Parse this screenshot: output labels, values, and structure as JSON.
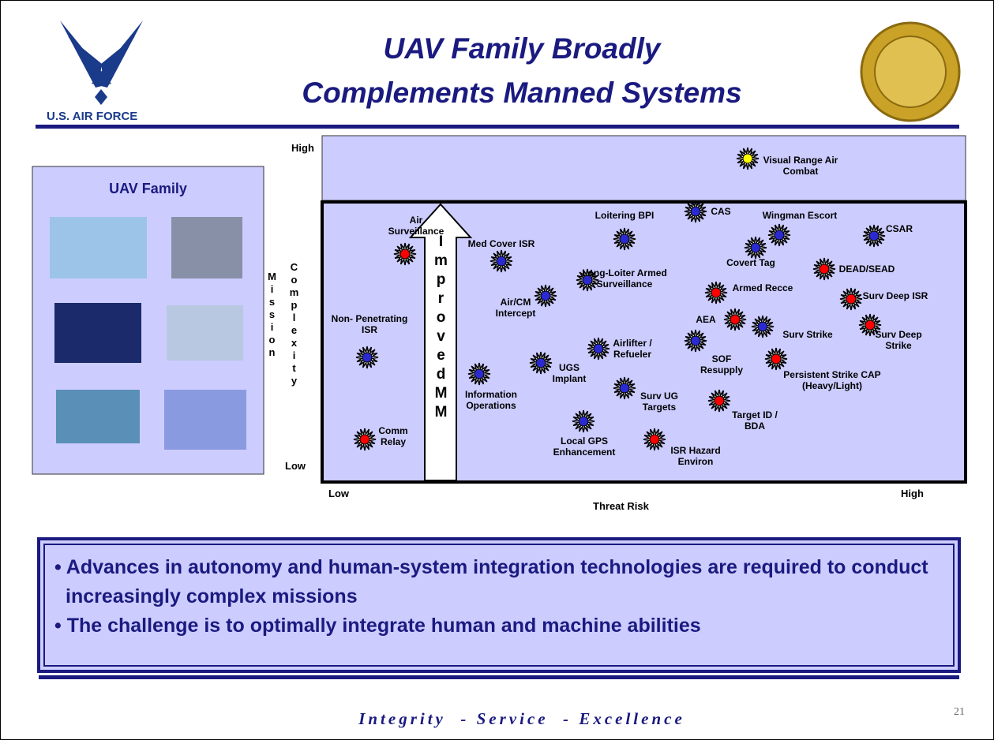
{
  "header": {
    "logo_text": "U.S. AIR FORCE",
    "title_lines": [
      "UAV Family Broadly",
      "Complements Manned Systems"
    ]
  },
  "uav_panel": {
    "title": "UAV Family"
  },
  "diagram": {
    "y_axis_label": [
      "Mission",
      "Complexity"
    ],
    "y_high": "High",
    "y_low": "Low",
    "x_axis_label": "Threat Risk",
    "x_low": "Low",
    "x_high": "High",
    "arrow_text": "ImprovedMM",
    "nodes": [
      {
        "label": "Air Surveillance",
        "color": "#ff0000"
      },
      {
        "label": "Med Cover ISR",
        "color": "#2a2ad0"
      },
      {
        "label": "Non- Penetrating ISR",
        "color": "#2a2ad0"
      },
      {
        "label": "Comm Relay",
        "color": "#ff0000"
      },
      {
        "label": "Loitering BPI",
        "color": "#2a2ad0"
      },
      {
        "label": "CAS",
        "color": "#2a2ad0"
      },
      {
        "label": "Visual Range Air Combat",
        "color": "#ffff00"
      },
      {
        "label": "Wingman Escort",
        "color": "#2a2ad0"
      },
      {
        "label": "Covert Tag",
        "color": "#2a2ad0"
      },
      {
        "label": "CSAR",
        "color": "#2a2ad0"
      },
      {
        "label": "DEAD/SEAD",
        "color": "#ff0000"
      },
      {
        "label": "Long-Loiter Armed Surveillance",
        "color": "#2a2ad0"
      },
      {
        "label": "Air/CM Intercept",
        "color": "#2a2ad0"
      },
      {
        "label": "Armed Recce",
        "color": "#ff0000"
      },
      {
        "label": "Surv Deep ISR",
        "color": "#ff0000"
      },
      {
        "label": "AEA",
        "color": "#ff0000"
      },
      {
        "label": "Surv  Strike",
        "color": "#2a2ad0"
      },
      {
        "label": "Surv Deep Strike",
        "color": "#ff0000"
      },
      {
        "label": "Airlifter / Refueler",
        "color": "#2a2ad0"
      },
      {
        "label": "SOF Resupply",
        "color": "#2a2ad0"
      },
      {
        "label": "Persistent Strike CAP (Heavy/Light)",
        "color": "#ff0000"
      },
      {
        "label": "UGS Implant",
        "color": "#2a2ad0"
      },
      {
        "label": "Information Operations",
        "color": "#2a2ad0"
      },
      {
        "label": "Surv UG Targets",
        "color": "#2a2ad0"
      },
      {
        "label": "Target ID / BDA",
        "color": "#ff0000"
      },
      {
        "label": "Local GPS Enhancement",
        "color": "#2a2ad0"
      },
      {
        "label": "ISR Hazard Environ",
        "color": "#ff0000"
      }
    ]
  },
  "bullets": [
    "• Advances in autonomy and human-system integration technologies are required to conduct increasingly complex missions",
    "• The challenge is to optimally integrate human and machine abilities"
  ],
  "footer": {
    "motto": "Integrity  - Service  - Excellence",
    "page_number": "21"
  }
}
